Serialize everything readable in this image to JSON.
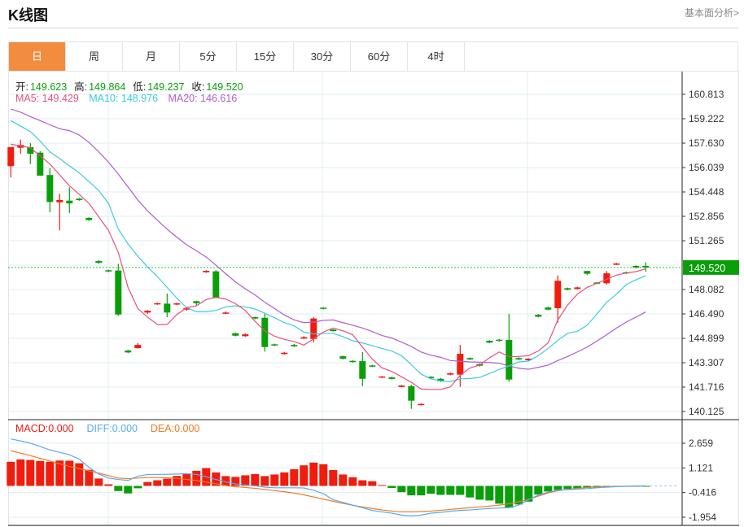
{
  "header": {
    "title": "K线图",
    "fundamental_link": "基本面分析>"
  },
  "tabs": [
    {
      "label": "日",
      "active": true
    },
    {
      "label": "周"
    },
    {
      "label": "月"
    },
    {
      "label": "5分"
    },
    {
      "label": "15分"
    },
    {
      "label": "30分"
    },
    {
      "label": "60分"
    },
    {
      "label": "4时"
    }
  ],
  "ohlc_legend": {
    "open_label": "开:",
    "open": "149.623",
    "high_label": "高:",
    "high": "149.864",
    "low_label": "低:",
    "low": "149.237",
    "close_label": "收:",
    "close": "149.520"
  },
  "ma_legend": {
    "ma5": "MA5: 149.429",
    "ma10": "MA10: 148.976",
    "ma20": "MA20: 146.616"
  },
  "macd_legend": {
    "macd": "MACD:0.000",
    "diff": "DIFF:0.000",
    "dea": "DEA:0.000"
  },
  "colors": {
    "up": "#f01c0e",
    "down": "#0a9e0a",
    "ma5": "#e9507a",
    "ma10": "#3ccbe0",
    "ma20": "#b05ccc",
    "diff": "#5aa9f2",
    "dea": "#f07a22",
    "tab_active": "#f28c3f"
  },
  "chart_data": {
    "type": "candlestick",
    "price_ticks": [
      "160.813",
      "159.222",
      "157.630",
      "156.039",
      "154.448",
      "152.856",
      "151.265",
      "148.082",
      "146.490",
      "144.899",
      "143.307",
      "141.716",
      "140.125"
    ],
    "price_range": [
      140.125,
      160.813
    ],
    "last_price": "149.520",
    "candles": [
      [
        156.13,
        157.37,
        155.39,
        157.37
      ],
      [
        157.33,
        157.86,
        156.94,
        157.51
      ],
      [
        157.37,
        157.63,
        156.27,
        156.94
      ],
      [
        157.01,
        157.1,
        155.51,
        155.51
      ],
      [
        155.55,
        155.99,
        153.12,
        153.79
      ],
      [
        153.77,
        154.33,
        151.94,
        153.92
      ],
      [
        153.88,
        154.75,
        153.08,
        153.7
      ],
      [
        154.01,
        154.05,
        153.87,
        153.92
      ],
      [
        152.75,
        152.8,
        152.56,
        152.61
      ],
      [
        149.94,
        150.0,
        149.76,
        149.82
      ],
      [
        149.34,
        149.38,
        149.22,
        149.26
      ],
      [
        149.32,
        149.76,
        146.37,
        146.45
      ],
      [
        144.1,
        144.16,
        143.93,
        143.98
      ],
      [
        144.26,
        144.59,
        144.22,
        144.47
      ],
      [
        146.58,
        146.74,
        146.49,
        146.7
      ],
      [
        147.13,
        147.23,
        147.08,
        147.19
      ],
      [
        147.16,
        147.82,
        146.28,
        146.58
      ],
      [
        147.11,
        147.22,
        147.06,
        147.18
      ],
      [
        146.77,
        146.95,
        146.7,
        146.88
      ],
      [
        147.32,
        147.35,
        147.07,
        147.19
      ],
      [
        149.21,
        149.34,
        149.17,
        149.3
      ],
      [
        149.27,
        149.34,
        147.51,
        147.57
      ],
      [
        146.51,
        146.65,
        146.47,
        146.58
      ],
      [
        145.23,
        145.27,
        145.03,
        145.07
      ],
      [
        145.04,
        145.23,
        144.99,
        145.16
      ],
      [
        146.28,
        146.32,
        146.14,
        146.19
      ],
      [
        146.24,
        146.5,
        144.03,
        144.33
      ],
      [
        144.51,
        144.55,
        144.4,
        144.44
      ],
      [
        143.87,
        144.01,
        143.84,
        143.96
      ],
      [
        144.47,
        144.54,
        144.33,
        144.38
      ],
      [
        144.88,
        145.04,
        144.86,
        144.97
      ],
      [
        144.86,
        146.28,
        144.63,
        146.19
      ],
      [
        146.9,
        146.93,
        146.79,
        146.82
      ],
      [
        145.47,
        145.5,
        145.34,
        145.37
      ],
      [
        143.73,
        143.77,
        143.52,
        143.57
      ],
      [
        143.43,
        143.47,
        143.32,
        143.36
      ],
      [
        143.41,
        144.0,
        141.78,
        142.26
      ],
      [
        143.13,
        143.17,
        143.02,
        143.06
      ],
      [
        142.35,
        142.44,
        142.32,
        142.41
      ],
      [
        142.35,
        142.39,
        142.21,
        142.25
      ],
      [
        141.73,
        141.86,
        141.7,
        141.82
      ],
      [
        141.78,
        141.87,
        140.3,
        140.83
      ],
      [
        140.56,
        140.66,
        140.52,
        140.62
      ],
      [
        142.39,
        142.43,
        142.26,
        142.3
      ],
      [
        142.26,
        142.32,
        142.05,
        142.1
      ],
      [
        142.53,
        142.66,
        142.49,
        142.62
      ],
      [
        142.53,
        144.47,
        141.73,
        143.89
      ],
      [
        143.61,
        143.65,
        143.48,
        143.52
      ],
      [
        143.22,
        143.26,
        143.06,
        143.11
      ],
      [
        144.74,
        144.78,
        144.58,
        144.62
      ],
      [
        144.81,
        144.86,
        144.69,
        144.73
      ],
      [
        144.79,
        146.49,
        142.07,
        142.21
      ],
      [
        143.61,
        143.66,
        143.48,
        143.52
      ],
      [
        143.47,
        143.6,
        143.43,
        143.57
      ],
      [
        146.44,
        146.48,
        146.27,
        146.31
      ],
      [
        146.91,
        146.96,
        146.72,
        146.77
      ],
      [
        146.86,
        149.0,
        145.92,
        148.65
      ],
      [
        148.17,
        148.21,
        148.02,
        148.07
      ],
      [
        148.12,
        148.26,
        148.08,
        148.22
      ],
      [
        149.29,
        149.31,
        149.03,
        149.11
      ],
      [
        148.54,
        148.58,
        148.43,
        148.47
      ],
      [
        148.49,
        149.29,
        148.4,
        149.14
      ],
      [
        149.71,
        149.82,
        149.68,
        149.78
      ],
      [
        149.21,
        149.25,
        149.1,
        149.14
      ],
      [
        149.62,
        149.66,
        149.47,
        149.51
      ],
      [
        149.623,
        149.864,
        149.237,
        149.52
      ]
    ],
    "ma5": [
      157.56,
      157.45,
      157.33,
      156.8,
      156.27,
      155.56,
      154.85,
      154.29,
      153.7,
      152.82,
      151.94,
      150.52,
      148.22,
      146.84,
      146.28,
      145.8,
      145.8,
      146.45,
      146.9,
      147.02,
      147.43,
      147.57,
      147.46,
      147.16,
      146.72,
      146.01,
      145.39,
      145.04,
      144.83,
      144.69,
      144.46,
      144.86,
      145.31,
      145.57,
      145.39,
      145.13,
      144.33,
      143.54,
      142.97,
      142.74,
      142.39,
      142.03,
      141.59,
      141.56,
      141.56,
      141.73,
      142.48,
      142.97,
      143.15,
      143.63,
      144.01,
      143.71,
      143.71,
      143.77,
      144.07,
      144.6,
      146.1,
      147.07,
      147.78,
      148.22,
      148.49,
      148.75,
      149.02,
      149.16,
      149.25,
      149.43
    ],
    "ma10": [
      159.1,
      158.74,
      158.39,
      157.77,
      157.06,
      156.62,
      156.15,
      155.69,
      155.12,
      154.54,
      153.7,
      152.03,
      151.05,
      150.26,
      149.55,
      148.93,
      148.22,
      147.52,
      146.9,
      146.63,
      146.63,
      146.72,
      146.95,
      147.02,
      146.95,
      146.81,
      146.54,
      146.24,
      145.92,
      145.71,
      145.31,
      145.18,
      145.22,
      145.22,
      145.01,
      144.74,
      144.6,
      144.42,
      144.24,
      144.07,
      143.77,
      143.18,
      142.56,
      142.26,
      142.12,
      142.07,
      142.25,
      142.28,
      142.35,
      142.6,
      142.87,
      143.1,
      143.36,
      143.41,
      143.77,
      144.24,
      144.77,
      145.22,
      145.36,
      145.75,
      146.49,
      147.25,
      147.78,
      148.4,
      148.72,
      148.98
    ],
    "ma20": [
      159.86,
      159.65,
      159.36,
      159.1,
      158.83,
      158.57,
      158.44,
      158.16,
      157.68,
      157.06,
      156.39,
      155.61,
      154.77,
      153.92,
      153.21,
      152.61,
      152.02,
      151.49,
      151.0,
      150.61,
      150.2,
      149.67,
      149.11,
      148.58,
      148.13,
      147.73,
      147.25,
      146.84,
      146.42,
      146.1,
      145.92,
      145.96,
      146.07,
      146.1,
      145.92,
      145.75,
      145.57,
      145.34,
      145.08,
      144.92,
      144.65,
      144.37,
      144.01,
      143.8,
      143.66,
      143.45,
      143.4,
      143.36,
      143.34,
      143.32,
      143.27,
      143.1,
      142.95,
      142.88,
      143.01,
      143.15,
      143.45,
      143.71,
      144.01,
      144.33,
      144.72,
      145.13,
      145.57,
      145.96,
      146.28,
      146.62
    ],
    "macd_ticks": [
      "2.659",
      "1.121",
      "-0.416",
      "-1.954"
    ],
    "macd_range": [
      -2.15,
      3.0
    ],
    "macd": [
      1.5,
      1.65,
      1.62,
      1.55,
      1.5,
      1.58,
      1.57,
      1.41,
      1.0,
      0.46,
      0.1,
      -0.32,
      -0.47,
      -0.15,
      0.24,
      0.35,
      0.45,
      0.62,
      0.74,
      0.94,
      1.11,
      0.84,
      0.61,
      0.56,
      0.66,
      0.74,
      0.61,
      0.71,
      0.84,
      1.04,
      1.28,
      1.45,
      1.35,
      0.99,
      0.71,
      0.54,
      0.35,
      0.29,
      0.05,
      -0.13,
      -0.39,
      -0.59,
      -0.59,
      -0.49,
      -0.56,
      -0.56,
      -0.56,
      -0.72,
      -0.86,
      -0.91,
      -1.11,
      -1.36,
      -1.16,
      -0.98,
      -0.54,
      -0.35,
      -0.25,
      -0.19,
      -0.15,
      -0.12,
      -0.1,
      -0.07,
      -0.03,
      -0.02,
      -0.02,
      -0.01
    ],
    "diff": [
      2.93,
      2.8,
      2.66,
      2.46,
      2.24,
      2.09,
      1.94,
      1.67,
      1.16,
      0.74,
      0.49,
      0.4,
      0.34,
      0.61,
      0.71,
      0.71,
      0.72,
      0.74,
      0.76,
      0.71,
      0.57,
      0.4,
      0.24,
      0.12,
      0.05,
      0.0,
      -0.08,
      -0.12,
      -0.12,
      -0.12,
      -0.13,
      -0.27,
      -0.49,
      -0.86,
      -1.03,
      -1.2,
      -1.36,
      -1.53,
      -1.62,
      -1.7,
      -1.82,
      -1.87,
      -1.82,
      -1.7,
      -1.65,
      -1.58,
      -1.53,
      -1.5,
      -1.45,
      -1.41,
      -1.38,
      -1.36,
      -1.2,
      -0.86,
      -0.57,
      -0.39,
      -0.27,
      -0.24,
      -0.2,
      -0.17,
      -0.12,
      -0.08,
      -0.05,
      -0.03,
      -0.02,
      0.0
    ],
    "dea": [
      2.19,
      2.04,
      1.89,
      1.72,
      1.55,
      1.38,
      1.21,
      1.08,
      0.94,
      0.79,
      0.64,
      0.49,
      0.45,
      0.49,
      0.52,
      0.52,
      0.51,
      0.47,
      0.4,
      0.34,
      0.24,
      0.13,
      0.02,
      -0.05,
      -0.1,
      -0.15,
      -0.22,
      -0.29,
      -0.37,
      -0.45,
      -0.56,
      -0.69,
      -0.83,
      -0.96,
      -1.09,
      -1.21,
      -1.31,
      -1.41,
      -1.5,
      -1.57,
      -1.62,
      -1.62,
      -1.6,
      -1.57,
      -1.52,
      -1.47,
      -1.41,
      -1.36,
      -1.31,
      -1.26,
      -1.2,
      -1.11,
      -0.99,
      -0.84,
      -0.64,
      -0.44,
      -0.3,
      -0.22,
      -0.15,
      -0.1,
      -0.07,
      -0.05,
      -0.03,
      -0.02,
      0.0,
      0.0
    ]
  }
}
